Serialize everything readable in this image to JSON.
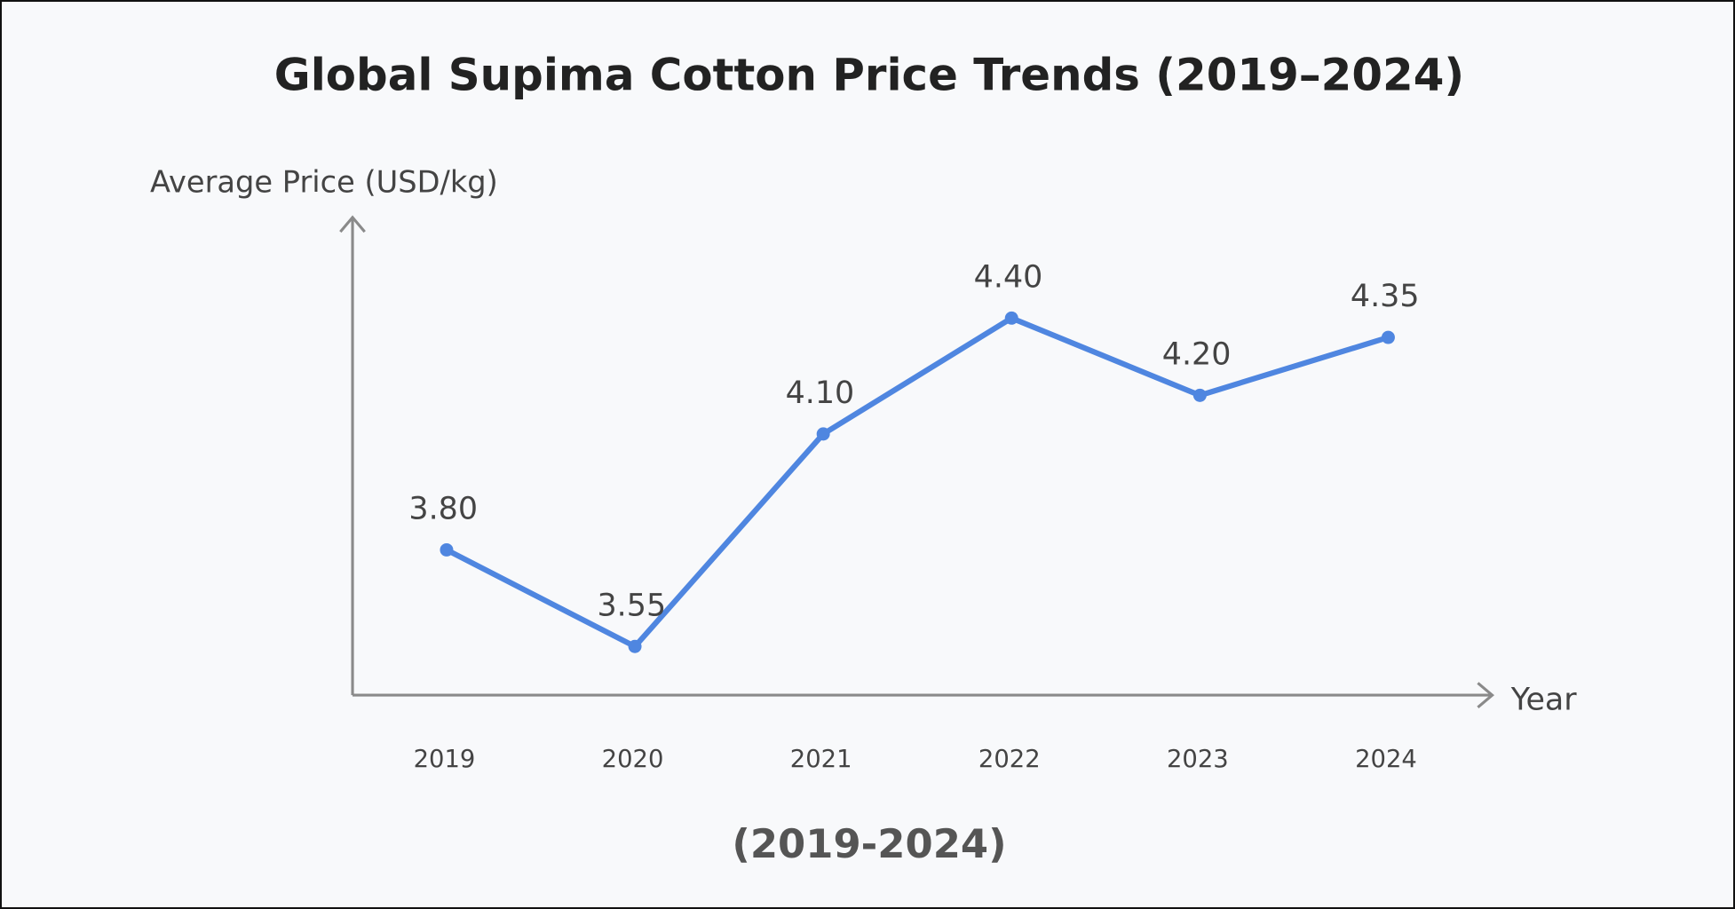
{
  "chart_data": {
    "type": "line",
    "title": "Global Supima Cotton Price Trends (2019–2024)",
    "subtitle": "(2019-2024)",
    "xlabel": "Year",
    "ylabel": "Average Price (USD/kg)",
    "categories": [
      "2019",
      "2020",
      "2021",
      "2022",
      "2023",
      "2024"
    ],
    "values": [
      3.8,
      3.55,
      4.1,
      4.4,
      4.2,
      4.35
    ],
    "data_labels": [
      "3.80",
      "3.55",
      "4.10",
      "4.40",
      "4.20",
      "4.35"
    ],
    "grid": false,
    "legend": "none",
    "colors": {
      "line": "#4f86e0",
      "axis": "#8a8a8a",
      "title": "#222222",
      "text": "#444444"
    }
  }
}
